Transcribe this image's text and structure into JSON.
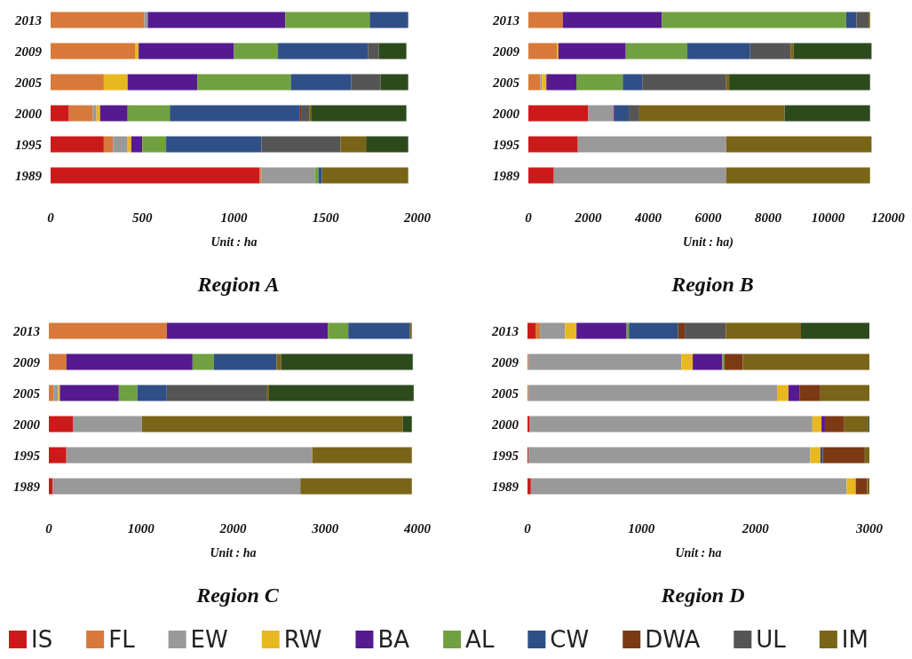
{
  "chart_data": [
    {
      "type": "bar",
      "orientation": "horizontal",
      "stacked": true,
      "title": "Region A",
      "xlabel": "Unit : ha",
      "categories": [
        "2013",
        "2009",
        "2005",
        "2000",
        "1995",
        "1989"
      ],
      "xlim": [
        0,
        2000
      ],
      "xticks": [
        0,
        500,
        1000,
        1500,
        2000
      ],
      "grid": false,
      "legend": "bottom",
      "series": [
        {
          "name": "IS",
          "color": "#cc1a1a",
          "values": [
            0,
            0,
            0,
            100,
            290,
            1140
          ]
        },
        {
          "name": "FL",
          "color": "#d7793a",
          "values": [
            510,
            460,
            290,
            130,
            50,
            10
          ]
        },
        {
          "name": "EW",
          "color": "#999999",
          "values": [
            20,
            0,
            0,
            20,
            80,
            290
          ]
        },
        {
          "name": "RW",
          "color": "#e8b820",
          "values": [
            0,
            20,
            130,
            20,
            20,
            0
          ]
        },
        {
          "name": "BA",
          "color": "#561a8f",
          "values": [
            750,
            520,
            380,
            150,
            60,
            0
          ]
        },
        {
          "name": "AL",
          "color": "#70a040",
          "values": [
            460,
            240,
            510,
            230,
            130,
            20
          ]
        },
        {
          "name": "CW",
          "color": "#2f4f86",
          "values": [
            210,
            490,
            330,
            710,
            520,
            20
          ]
        },
        {
          "name": "DWA",
          "color": "#7b3a14",
          "values": [
            0,
            0,
            0,
            10,
            0,
            0
          ]
        },
        {
          "name": "UL",
          "color": "#555555",
          "values": [
            0,
            60,
            160,
            40,
            430,
            0
          ]
        },
        {
          "name": "IM",
          "color": "#7a6418",
          "values": [
            0,
            0,
            0,
            10,
            140,
            470
          ]
        },
        {
          "color": "#2d4a1c",
          "values": [
            0,
            150,
            150,
            520,
            230,
            0
          ]
        }
      ]
    },
    {
      "type": "bar",
      "orientation": "horizontal",
      "stacked": true,
      "title": "Region B",
      "xlabel": "Unit : ha)",
      "categories": [
        "2013",
        "2009",
        "2005",
        "2000",
        "1995",
        "1989"
      ],
      "xlim": [
        0,
        12000
      ],
      "xticks": [
        0,
        2000,
        4000,
        6000,
        8000,
        10000,
        12000
      ],
      "grid": false,
      "series": [
        {
          "color": "#cc1a1a",
          "values": [
            0,
            0,
            0,
            2000,
            1650,
            850
          ]
        },
        {
          "color": "#d7793a",
          "values": [
            1150,
            950,
            400,
            0,
            0,
            0
          ]
        },
        {
          "color": "#999999",
          "values": [
            0,
            0,
            50,
            850,
            4950,
            5750
          ]
        },
        {
          "color": "#e8b820",
          "values": [
            0,
            50,
            150,
            0,
            0,
            0
          ]
        },
        {
          "color": "#561a8f",
          "values": [
            3300,
            2250,
            1000,
            50,
            0,
            0
          ]
        },
        {
          "color": "#70a040",
          "values": [
            6150,
            2050,
            1550,
            0,
            0,
            0
          ]
        },
        {
          "color": "#2f4f86",
          "values": [
            350,
            2100,
            650,
            450,
            0,
            0
          ]
        },
        {
          "color": "#555555",
          "values": [
            400,
            1350,
            2800,
            350,
            0,
            0
          ]
        },
        {
          "color": "#7a6418",
          "values": [
            50,
            100,
            100,
            4850,
            4850,
            4800
          ]
        },
        {
          "color": "#2d4a1c",
          "values": [
            0,
            2600,
            4700,
            2850,
            0,
            0
          ]
        }
      ]
    },
    {
      "type": "bar",
      "orientation": "horizontal",
      "stacked": true,
      "title": "Region C",
      "xlabel": "Unit : ha",
      "categories": [
        "2013",
        "2009",
        "2005",
        "2000",
        "1995",
        "1989"
      ],
      "xlim": [
        0,
        4000
      ],
      "xticks": [
        0,
        1000,
        2000,
        3000,
        4000
      ],
      "grid": false,
      "series": [
        {
          "color": "#cc1a1a",
          "values": [
            0,
            0,
            0,
            260,
            190,
            40
          ]
        },
        {
          "color": "#d7793a",
          "values": [
            1280,
            190,
            50,
            0,
            0,
            0
          ]
        },
        {
          "color": "#999999",
          "values": [
            0,
            0,
            50,
            750,
            2670,
            2690
          ]
        },
        {
          "color": "#e8b820",
          "values": [
            0,
            0,
            20,
            0,
            0,
            0
          ]
        },
        {
          "color": "#561a8f",
          "values": [
            1750,
            1370,
            640,
            0,
            0,
            0
          ]
        },
        {
          "color": "#70a040",
          "values": [
            220,
            230,
            200,
            0,
            0,
            0
          ]
        },
        {
          "color": "#2f4f86",
          "values": [
            670,
            680,
            320,
            0,
            0,
            0
          ]
        },
        {
          "color": "#555555",
          "values": [
            0,
            0,
            1090,
            0,
            0,
            0
          ]
        },
        {
          "color": "#7a6418",
          "values": [
            20,
            50,
            20,
            2830,
            1080,
            1210
          ]
        },
        {
          "color": "#2d4a1c",
          "values": [
            0,
            1430,
            1570,
            100,
            0,
            0
          ]
        }
      ]
    },
    {
      "type": "bar",
      "orientation": "horizontal",
      "stacked": true,
      "title": "Region D",
      "xlabel": "Unit : ha",
      "categories": [
        "2013",
        "2009",
        "2005",
        "2000",
        "1995",
        "1989"
      ],
      "xlim": [
        0,
        3000
      ],
      "xticks": [
        0,
        1000,
        2000,
        3000
      ],
      "grid": false,
      "series": [
        {
          "color": "#cc1a1a",
          "values": [
            70,
            0,
            0,
            20,
            10,
            30
          ]
        },
        {
          "color": "#d7793a",
          "values": [
            40,
            10,
            10,
            0,
            0,
            0
          ]
        },
        {
          "color": "#999999",
          "values": [
            220,
            1340,
            2180,
            2480,
            2470,
            2770
          ]
        },
        {
          "color": "#e8b820",
          "values": [
            100,
            100,
            100,
            80,
            90,
            80
          ]
        },
        {
          "color": "#561a8f",
          "values": [
            440,
            260,
            100,
            30,
            0,
            0
          ]
        },
        {
          "color": "#70a040",
          "values": [
            20,
            20,
            0,
            0,
            0,
            0
          ]
        },
        {
          "color": "#2f4f86",
          "values": [
            430,
            0,
            0,
            0,
            20,
            0
          ]
        },
        {
          "color": "#7b3a14",
          "values": [
            60,
            160,
            180,
            170,
            370,
            100
          ]
        },
        {
          "color": "#555555",
          "values": [
            360,
            0,
            0,
            0,
            0,
            0
          ]
        },
        {
          "color": "#7a6418",
          "values": [
            660,
            1110,
            430,
            210,
            40,
            20
          ]
        },
        {
          "color": "#2d4a1c",
          "values": [
            600,
            0,
            0,
            10,
            0,
            0
          ]
        }
      ]
    }
  ]
}
